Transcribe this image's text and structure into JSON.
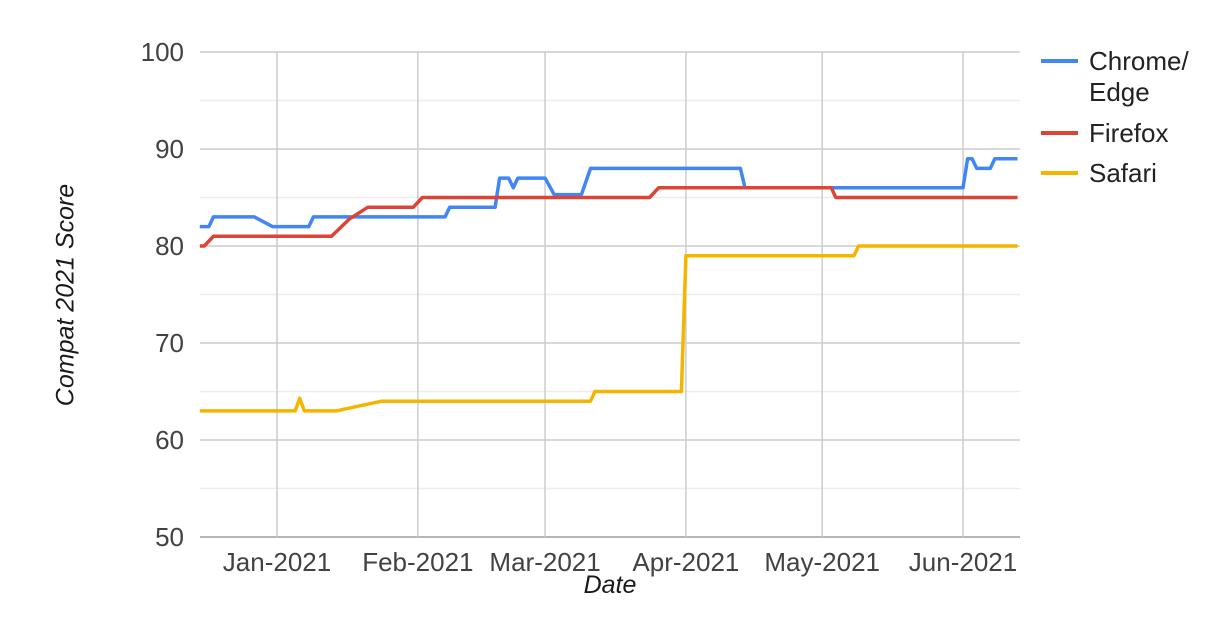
{
  "chart_data": {
    "type": "line",
    "title": "",
    "xlabel": "Date",
    "ylabel": "Compat 2021 Score",
    "grid": "on",
    "legend_position": "right",
    "x_axis": {
      "start_date": "2020-12-15",
      "end_date": "2021-06-13",
      "ticks": [
        {
          "label": "Jan-2021",
          "date": "2021-01-01"
        },
        {
          "label": "Feb-2021",
          "date": "2021-02-01"
        },
        {
          "label": "Mar-2021",
          "date": "2021-03-01"
        },
        {
          "label": "Apr-2021",
          "date": "2021-04-01"
        },
        {
          "label": "May-2021",
          "date": "2021-05-01"
        },
        {
          "label": "Jun-2021",
          "date": "2021-06-01"
        }
      ]
    },
    "y_axis": {
      "min": 50,
      "max": 100,
      "major_ticks": [
        100,
        90,
        80,
        70,
        60,
        50
      ],
      "minor_gridlines": [
        95,
        85,
        75,
        65,
        55
      ]
    },
    "series": [
      {
        "name": "Chrome/Edge",
        "color": "#4285F4",
        "points": [
          [
            "2020-12-15",
            82
          ],
          [
            "2020-12-17",
            82
          ],
          [
            "2020-12-18",
            83
          ],
          [
            "2020-12-27",
            83
          ],
          [
            "2020-12-31",
            82
          ],
          [
            "2021-01-08",
            82
          ],
          [
            "2021-01-09",
            83
          ],
          [
            "2021-02-07",
            83
          ],
          [
            "2021-02-08",
            84
          ],
          [
            "2021-02-18",
            84
          ],
          [
            "2021-02-19",
            87
          ],
          [
            "2021-02-21",
            87
          ],
          [
            "2021-02-22",
            86
          ],
          [
            "2021-02-23",
            87
          ],
          [
            "2021-03-01",
            87
          ],
          [
            "2021-03-03",
            85.3
          ],
          [
            "2021-03-09",
            85.3
          ],
          [
            "2021-03-11",
            88
          ],
          [
            "2021-04-13",
            88
          ],
          [
            "2021-04-14",
            86
          ],
          [
            "2021-06-01",
            86
          ],
          [
            "2021-06-02",
            89
          ],
          [
            "2021-06-03",
            89
          ],
          [
            "2021-06-04",
            88
          ],
          [
            "2021-06-07",
            88
          ],
          [
            "2021-06-08",
            89
          ],
          [
            "2021-06-13",
            89
          ]
        ]
      },
      {
        "name": "Firefox",
        "color": "#DB4437",
        "points": [
          [
            "2020-12-15",
            80
          ],
          [
            "2020-12-16",
            80
          ],
          [
            "2020-12-18",
            81
          ],
          [
            "2021-01-13",
            81
          ],
          [
            "2021-01-17",
            82.8
          ],
          [
            "2021-01-21",
            84
          ],
          [
            "2021-01-31",
            84
          ],
          [
            "2021-02-02",
            85
          ],
          [
            "2021-03-24",
            85
          ],
          [
            "2021-03-26",
            86
          ],
          [
            "2021-05-03",
            86
          ],
          [
            "2021-05-04",
            85
          ],
          [
            "2021-06-13",
            85
          ]
        ]
      },
      {
        "name": "Safari",
        "color": "#F4B400",
        "points": [
          [
            "2020-12-15",
            63
          ],
          [
            "2021-01-05",
            63
          ],
          [
            "2021-01-06",
            64.3
          ],
          [
            "2021-01-07",
            63
          ],
          [
            "2021-01-14",
            63
          ],
          [
            "2021-01-20",
            63.6
          ],
          [
            "2021-01-24",
            64
          ],
          [
            "2021-03-11",
            64
          ],
          [
            "2021-03-12",
            65
          ],
          [
            "2021-03-31",
            65
          ],
          [
            "2021-04-01",
            79
          ],
          [
            "2021-05-08",
            79
          ],
          [
            "2021-05-09",
            80
          ],
          [
            "2021-06-13",
            80
          ]
        ]
      }
    ],
    "style": {
      "major_grid_color": "#CCCCCC",
      "minor_grid_color": "#EDEDED",
      "baseline_color": "#B6B6B6",
      "line_width": 3.5
    }
  }
}
